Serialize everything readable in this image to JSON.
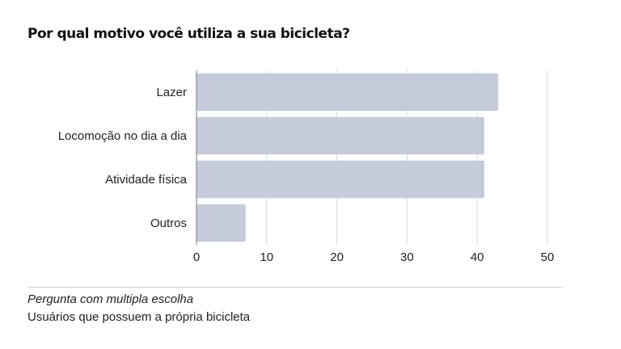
{
  "chart_data": {
    "type": "bar",
    "orientation": "horizontal",
    "title": "Por qual motivo você utiliza a sua bicicleta?",
    "categories": [
      "Lazer",
      "Locomoção no dia a dia",
      "Atividade física",
      "Outros"
    ],
    "values": [
      43,
      41,
      41,
      7
    ],
    "xlim": [
      0,
      50
    ],
    "xticks": [
      0,
      10,
      20,
      30,
      40,
      50
    ],
    "xlabel": "",
    "ylabel": "",
    "grid": true,
    "colors": {
      "bar": "#c5cbdb",
      "grid": "#d9d9d9",
      "axis": "#777777"
    }
  },
  "footnotes": {
    "line1": "Pergunta com multipla escolha",
    "line2": "Usuários que possuem a própria bicicleta"
  }
}
